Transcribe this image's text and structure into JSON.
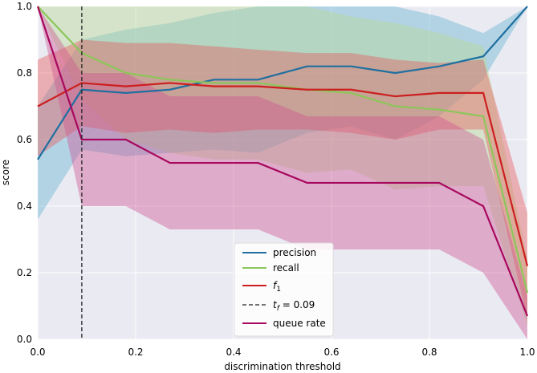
{
  "chart_data": {
    "type": "line",
    "title": "",
    "xlabel": "discrimination threshold",
    "ylabel": "score",
    "xlim": [
      0.0,
      1.0
    ],
    "ylim": [
      0.0,
      1.0
    ],
    "grid": true,
    "legend_position": "lower-center",
    "x_ticks": [
      "0.0",
      "0.2",
      "0.4",
      "0.6",
      "0.8",
      "1.0"
    ],
    "y_ticks": [
      "0.0",
      "0.2",
      "0.4",
      "0.6",
      "0.8",
      "1.0"
    ],
    "threshold": {
      "x": 0.09,
      "label_prefix": "t",
      "label_sub": "f",
      "label_value": " = 0.09"
    },
    "x": [
      0.0,
      0.09,
      0.18,
      0.27,
      0.36,
      0.45,
      0.55,
      0.64,
      0.73,
      0.82,
      0.91,
      1.0
    ],
    "series": [
      {
        "name": "precision",
        "label_main": "precision",
        "label_sub": "",
        "color": "#1f6fa0",
        "band_color": "#5fb2d0",
        "values": [
          0.54,
          0.75,
          0.74,
          0.75,
          0.78,
          0.78,
          0.82,
          0.82,
          0.8,
          0.82,
          0.85,
          1.0
        ],
        "upper": [
          0.7,
          0.9,
          0.93,
          0.95,
          0.98,
          1.0,
          1.0,
          1.0,
          1.0,
          0.97,
          0.92,
          1.0
        ],
        "lower": [
          0.36,
          0.57,
          0.55,
          0.56,
          0.57,
          0.56,
          0.62,
          0.64,
          0.6,
          0.67,
          0.78,
          1.0
        ]
      },
      {
        "name": "recall",
        "label_main": "recall",
        "label_sub": "",
        "color": "#8cc65a",
        "band_color": "#b3d98f",
        "values": [
          1.0,
          0.86,
          0.8,
          0.78,
          0.77,
          0.77,
          0.75,
          0.74,
          0.7,
          0.69,
          0.67,
          0.14
        ],
        "upper": [
          1.0,
          1.0,
          1.0,
          1.0,
          1.0,
          1.0,
          1.0,
          0.97,
          0.95,
          0.92,
          0.88,
          0.24
        ],
        "lower": [
          1.0,
          0.72,
          0.6,
          0.56,
          0.54,
          0.54,
          0.5,
          0.51,
          0.45,
          0.46,
          0.46,
          0.04
        ]
      },
      {
        "name": "f1",
        "label_main": "f",
        "label_sub": "1",
        "color": "#cc1f1f",
        "band_color": "#e85555",
        "values": [
          0.7,
          0.77,
          0.76,
          0.77,
          0.76,
          0.76,
          0.75,
          0.75,
          0.73,
          0.74,
          0.74,
          0.22
        ],
        "upper": [
          0.84,
          0.9,
          0.89,
          0.89,
          0.88,
          0.87,
          0.86,
          0.86,
          0.84,
          0.83,
          0.84,
          0.38
        ],
        "lower": [
          0.55,
          0.64,
          0.62,
          0.63,
          0.62,
          0.63,
          0.63,
          0.62,
          0.6,
          0.63,
          0.63,
          0.06
        ]
      },
      {
        "name": "queue rate",
        "label_main": "queue rate",
        "label_sub": "",
        "color": "#a8085f",
        "band_color": "#cc4f8f",
        "values": [
          1.0,
          0.6,
          0.6,
          0.53,
          0.53,
          0.53,
          0.47,
          0.47,
          0.47,
          0.47,
          0.4,
          0.07
        ],
        "upper": [
          1.0,
          0.8,
          0.8,
          0.73,
          0.73,
          0.73,
          0.67,
          0.67,
          0.67,
          0.67,
          0.6,
          0.13
        ],
        "lower": [
          1.0,
          0.4,
          0.4,
          0.33,
          0.33,
          0.33,
          0.27,
          0.27,
          0.27,
          0.27,
          0.2,
          0.0
        ]
      }
    ]
  }
}
